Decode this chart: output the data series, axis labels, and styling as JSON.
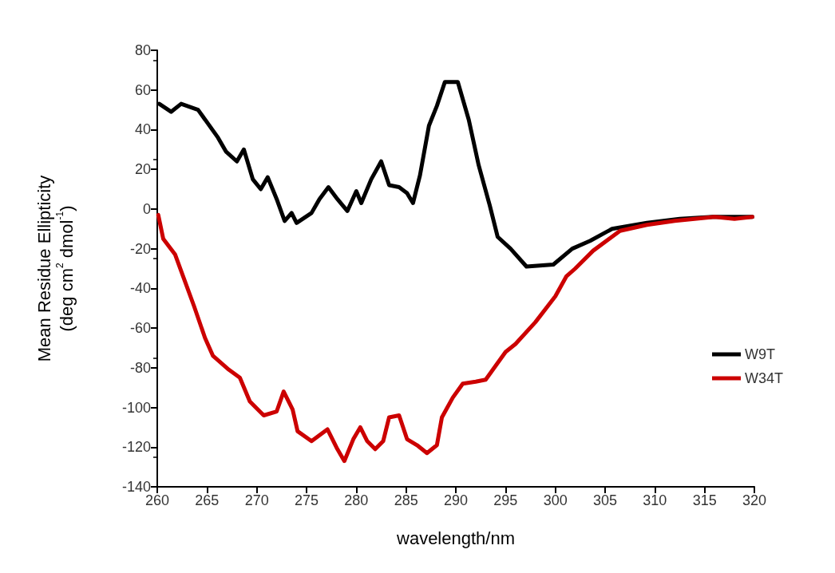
{
  "chart_data": {
    "type": "line",
    "xlabel": "wavelength/nm",
    "ylabel": "Mean Residue Ellipticity\n(deg cm$^{2}$ dmol$^{-1}$)",
    "xlim": [
      260,
      320
    ],
    "xticks": [
      260,
      265,
      270,
      275,
      280,
      285,
      290,
      295,
      300,
      305,
      310,
      315,
      320
    ],
    "ylim": [
      -140,
      80
    ],
    "yticks": [
      -140,
      -120,
      -100,
      -80,
      -60,
      -40,
      -20,
      0,
      20,
      40,
      60,
      80
    ],
    "grid": false,
    "legend": "right",
    "marker": "none",
    "line_style": "solid",
    "series": [
      {
        "name": "W9T",
        "color": "#000000",
        "x": [
          260.2,
          261.4,
          262.4,
          264.1,
          266.1,
          266.9,
          268,
          268.7,
          269.6,
          270.4,
          271.1,
          272,
          272.8,
          273.5,
          274,
          275.5,
          276.3,
          277.2,
          278.1,
          279.1,
          280,
          280.5,
          281.5,
          282.5,
          283.3,
          284.3,
          285.1,
          285.7,
          286.4,
          287.3,
          288.1,
          288.9,
          289.8,
          290.2,
          291.3,
          292.3,
          293.4,
          294.2,
          295.5,
          297.1,
          299.8,
          301.7,
          303.5,
          305.7,
          309.2,
          312.5,
          315.8,
          319.8
        ],
        "values": [
          53,
          49,
          53,
          50,
          36,
          29,
          24,
          30,
          15,
          10,
          16,
          5,
          -6,
          -2,
          -7,
          -2,
          5,
          11,
          5,
          -1,
          9,
          3,
          15,
          24,
          12,
          11,
          8,
          3,
          17,
          42,
          52,
          64,
          64,
          64,
          45,
          22,
          2,
          -14,
          -20,
          -29,
          -28,
          -20,
          -16,
          -10,
          -7,
          -5,
          -4,
          -4
        ]
      },
      {
        "name": "W34T",
        "color": "#cc0000",
        "x": [
          260.1,
          260.6,
          261.8,
          262.6,
          263.7,
          264.8,
          265.6,
          267.2,
          268.3,
          269.3,
          270.7,
          272,
          272.7,
          273.6,
          274.1,
          275.5,
          277.1,
          278.1,
          278.8,
          279.7,
          280.4,
          281.1,
          281.9,
          282.7,
          283.3,
          284.3,
          285.1,
          286.1,
          287.1,
          288.1,
          288.6,
          289.7,
          290.7,
          292,
          293,
          295,
          296,
          298,
          300,
          301.1,
          302,
          303.8,
          306.5,
          309.2,
          312,
          314,
          316,
          318,
          319.8
        ],
        "values": [
          -3,
          -15,
          -23,
          -34,
          -49,
          -65,
          -74,
          -81,
          -85,
          -97,
          -104,
          -102,
          -92,
          -101,
          -112,
          -117,
          -111,
          -121,
          -127,
          -116,
          -110,
          -117,
          -121,
          -117,
          -105,
          -104,
          -116,
          -119,
          -123,
          -119,
          -105,
          -95,
          -88,
          -87,
          -86,
          -72,
          -68,
          -57,
          -44,
          -34,
          -30,
          -21,
          -11,
          -8,
          -6,
          -5,
          -4,
          -5,
          -4
        ]
      }
    ]
  }
}
